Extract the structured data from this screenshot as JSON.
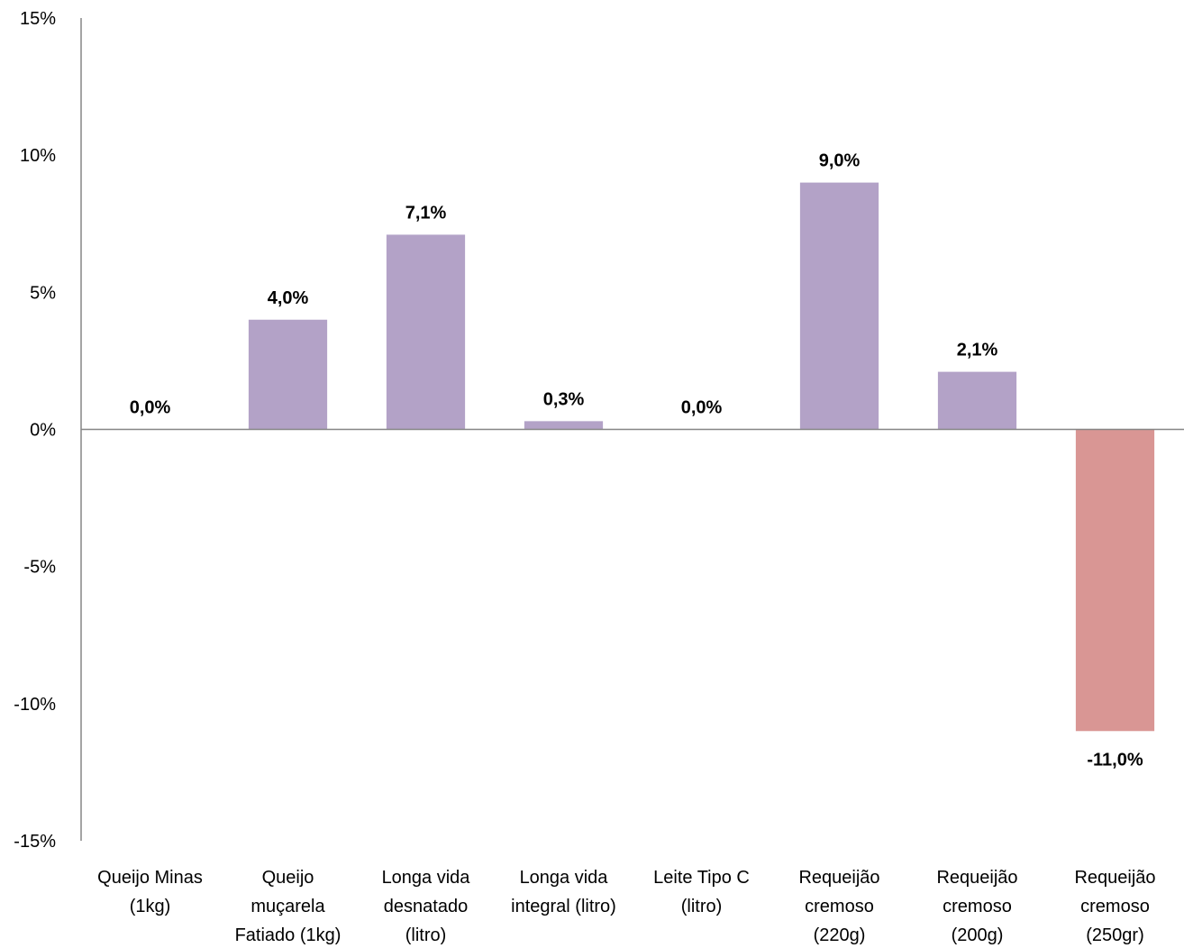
{
  "chart_data": {
    "type": "bar",
    "title": "",
    "xlabel": "",
    "ylabel": "",
    "ylim": [
      -15,
      15
    ],
    "ytick_step": 5,
    "ytick_labels": [
      "15%",
      "10%",
      "5%",
      "0%",
      "-5%",
      "-10%",
      "-15%"
    ],
    "grid": false,
    "legend": "none",
    "positive_color": "#b3a2c7",
    "negative_color": "#d99694",
    "categories": [
      [
        "Queijo Minas",
        "(1kg)"
      ],
      [
        "Queijo",
        "muçarela",
        "Fatiado (1kg)"
      ],
      [
        "Longa vida",
        "desnatado",
        "(litro)"
      ],
      [
        "Longa vida",
        "integral (litro)"
      ],
      [
        "Leite Tipo C",
        "(litro)"
      ],
      [
        "Requeijão",
        "cremoso",
        "(220g)"
      ],
      [
        "Requeijão",
        "cremoso",
        "(200g)"
      ],
      [
        "Requeijão",
        "cremoso",
        "(250gr)"
      ]
    ],
    "values": [
      0.0,
      4.0,
      7.1,
      0.3,
      0.0,
      9.0,
      2.1,
      -11.0
    ],
    "data_labels": [
      "0,0%",
      "4,0%",
      "7,1%",
      "0,3%",
      "0,0%",
      "9,0%",
      "2,1%",
      "-11,0%"
    ]
  }
}
